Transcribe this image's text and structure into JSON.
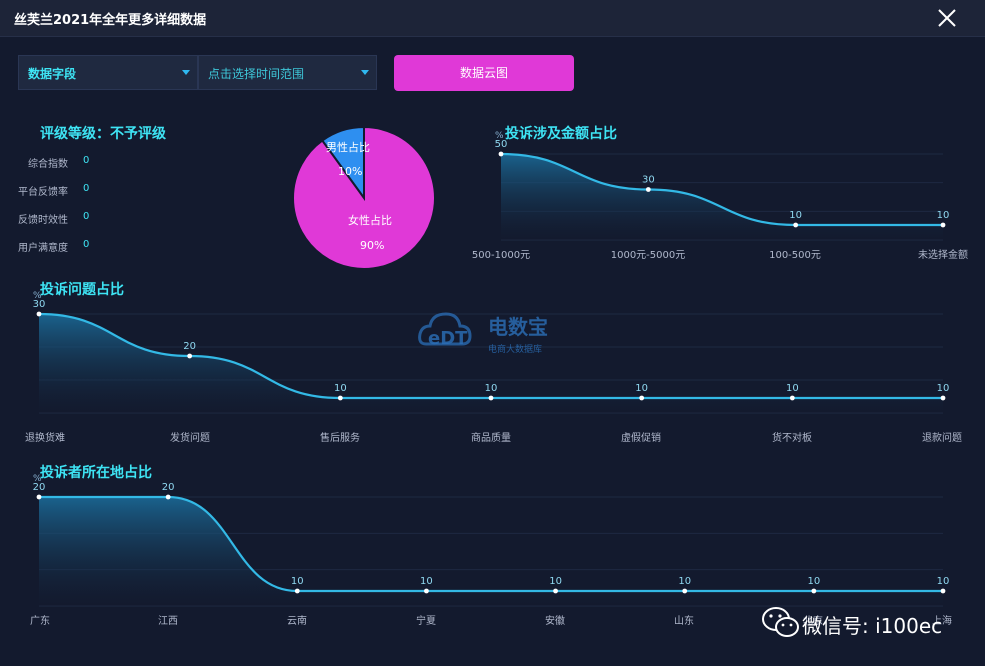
{
  "window": {
    "title": "丝芙兰2021年全年更多详细数据"
  },
  "toolbar": {
    "field_select": "数据字段",
    "time_select_placeholder": "点击选择时间范围",
    "cloud_button": "数据云图"
  },
  "rating": {
    "title": "评级等级：不予评级",
    "metrics": [
      {
        "label": "综合指数",
        "value": "0"
      },
      {
        "label": "平台反馈率",
        "value": "0"
      },
      {
        "label": "反馈时效性",
        "value": "0"
      },
      {
        "label": "用户满意度",
        "value": "0"
      }
    ]
  },
  "watermark": {
    "logo_text": "eDT",
    "name": "电数宝",
    "tagline": "电商大数据库"
  },
  "wechat": {
    "text": "微信号: i100ec"
  },
  "chart_data": [
    {
      "id": "gender",
      "type": "pie",
      "title": "",
      "slices": [
        {
          "label": "男性占比",
          "pct": "10%",
          "value": 10,
          "color": "#2e8ff0"
        },
        {
          "label": "女性占比",
          "pct": "90%",
          "value": 90,
          "color": "#e039d7"
        }
      ]
    },
    {
      "id": "amount",
      "type": "area",
      "title": "投诉涉及金额占比",
      "y_axis_mark": "%",
      "ylim": [
        0,
        50
      ],
      "categories": [
        "500-1000元",
        "1000元-5000元",
        "100-500元",
        "未选择金额"
      ],
      "values": [
        50,
        30,
        10,
        10
      ],
      "point_labels": [
        "50",
        "30",
        "10",
        "10"
      ],
      "colors": {
        "line": "#33b9e6",
        "fill_top": "#1b6f9e",
        "fill_bottom": "#131a2e"
      }
    },
    {
      "id": "issue",
      "type": "area",
      "title": "投诉问题占比",
      "y_axis_mark": "%",
      "ylim": [
        0,
        30
      ],
      "categories": [
        "退换货难",
        "发货问题",
        "售后服务",
        "商品质量",
        "虚假促销",
        "货不对板",
        "退款问题"
      ],
      "values": [
        30,
        20,
        10,
        10,
        10,
        10,
        10
      ],
      "point_labels": [
        "30",
        "20",
        "10",
        "10",
        "10",
        "10",
        "10"
      ],
      "colors": {
        "line": "#33b9e6",
        "fill_top": "#1b6f9e",
        "fill_bottom": "#131a2e"
      }
    },
    {
      "id": "location",
      "type": "area",
      "title": "投诉者所在地占比",
      "y_axis_mark": "%",
      "ylim": [
        0,
        20
      ],
      "categories": [
        "广东",
        "江西",
        "云南",
        "宁夏",
        "安徽",
        "山东",
        "北京",
        "上海"
      ],
      "values": [
        20,
        20,
        10,
        10,
        10,
        10,
        10,
        10
      ],
      "point_labels": [
        "20",
        "20",
        "10",
        "10",
        "10",
        "10",
        "10",
        "10"
      ],
      "colors": {
        "line": "#33b9e6",
        "fill_top": "#1b6f9e",
        "fill_bottom": "#131a2e"
      }
    }
  ]
}
